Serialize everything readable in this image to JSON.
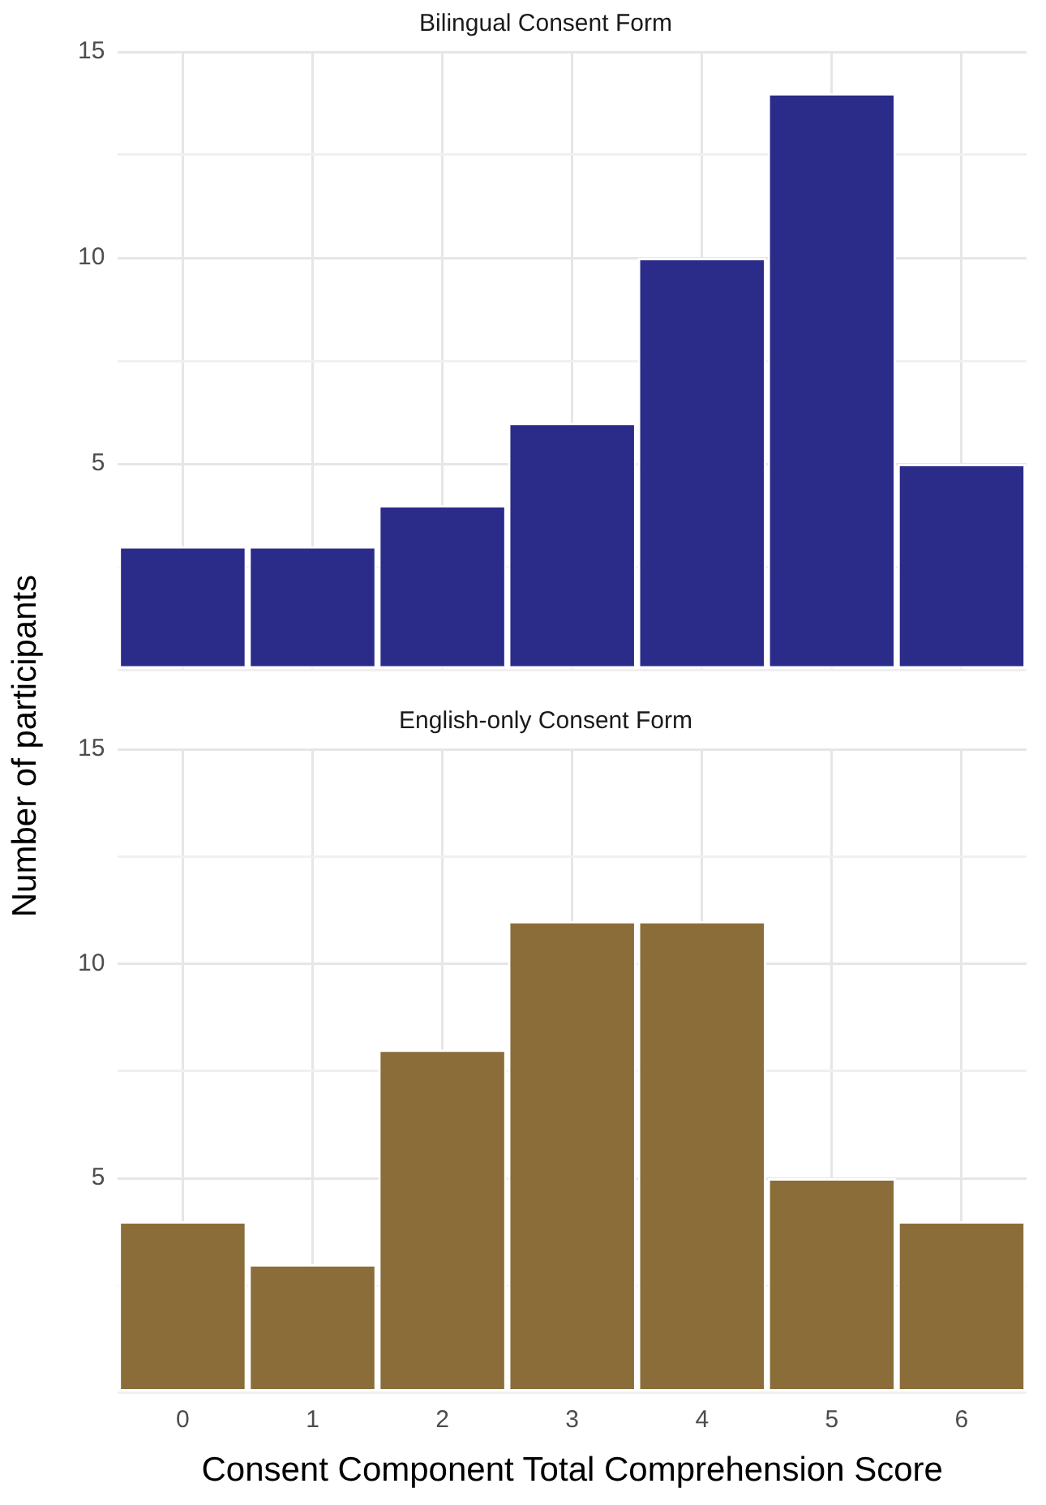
{
  "chart_data": [
    {
      "type": "bar",
      "title": "Bilingual Consent Form",
      "ylabel": "Number of participants",
      "categories": [
        "0",
        "1",
        "2",
        "3",
        "4",
        "5",
        "6"
      ],
      "values": [
        3,
        3,
        4,
        6,
        10,
        14,
        5
      ],
      "color": "#2b2b8a",
      "ylim": [
        0,
        15
      ],
      "yticks": [
        {
          "value": 0,
          "label": null
        },
        {
          "value": 2.5,
          "label": null
        },
        5,
        {
          "value": 7.5,
          "label": null
        },
        10,
        {
          "value": 12.5,
          "label": null
        },
        15
      ],
      "grid": true,
      "legend": false,
      "tick_labels": "y"
    },
    {
      "type": "bar",
      "title": "English-only Consent Form",
      "xlabel": "Consent Component Total Comprehension Score",
      "categories": [
        "0",
        "1",
        "2",
        "3",
        "4",
        "5",
        "6"
      ],
      "values": [
        4,
        3,
        8,
        11,
        11,
        5,
        4
      ],
      "color": "#8b6d39",
      "ylim": [
        0,
        15
      ],
      "yticks": [
        {
          "value": 0,
          "label": null
        },
        {
          "value": 2.5,
          "label": null
        },
        5,
        {
          "value": 7.5,
          "label": null
        },
        10,
        {
          "value": 12.5,
          "label": null
        },
        15
      ],
      "grid": true,
      "legend": false
    }
  ]
}
